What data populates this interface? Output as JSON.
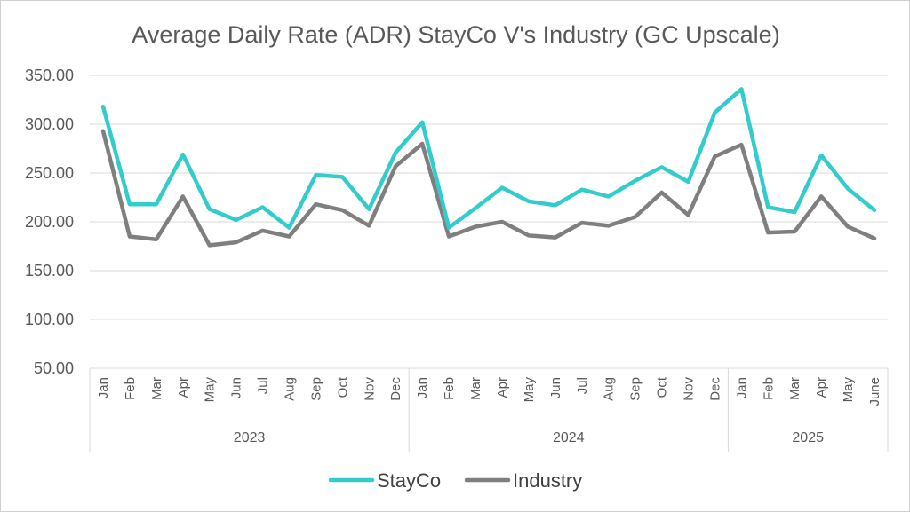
{
  "chart_data": {
    "type": "line",
    "title": "Average Daily Rate (ADR) StayCo V's Industry (GC Upscale)",
    "xlabel": "",
    "ylabel": "",
    "ylim": [
      50,
      350
    ],
    "yticks": [
      "50.00",
      "100.00",
      "150.00",
      "200.00",
      "250.00",
      "300.00",
      "350.00"
    ],
    "grid": true,
    "legend_position": "bottom",
    "groups": [
      {
        "label": "2023",
        "categories": [
          "Jan",
          "Feb",
          "Mar",
          "Apr",
          "May",
          "Jun",
          "Jul",
          "Aug",
          "Sep",
          "Oct",
          "Nov",
          "Dec"
        ]
      },
      {
        "label": "2024",
        "categories": [
          "Jan",
          "Feb",
          "Mar",
          "Apr",
          "May",
          "Jun",
          "Jul",
          "Aug",
          "Sep",
          "Oct",
          "Nov",
          "Dec"
        ]
      },
      {
        "label": "2025",
        "categories": [
          "Jan",
          "Feb",
          "Mar",
          "Apr",
          "May",
          "June"
        ]
      }
    ],
    "series": [
      {
        "name": "StayCo",
        "color": "#33CCCC",
        "values": [
          318,
          218,
          218,
          269,
          213,
          202,
          215,
          194,
          248,
          246,
          213,
          271,
          302,
          194,
          214,
          235,
          221,
          217,
          233,
          226,
          242,
          256,
          241,
          312,
          336,
          215,
          210,
          268,
          234,
          212
        ]
      },
      {
        "name": "Industry",
        "color": "#7F7F7F",
        "values": [
          293,
          185,
          182,
          226,
          176,
          179,
          191,
          185,
          218,
          212,
          196,
          257,
          280,
          185,
          195,
          200,
          186,
          184,
          199,
          196,
          205,
          230,
          207,
          267,
          279,
          189,
          190,
          226,
          195,
          183
        ]
      }
    ]
  }
}
